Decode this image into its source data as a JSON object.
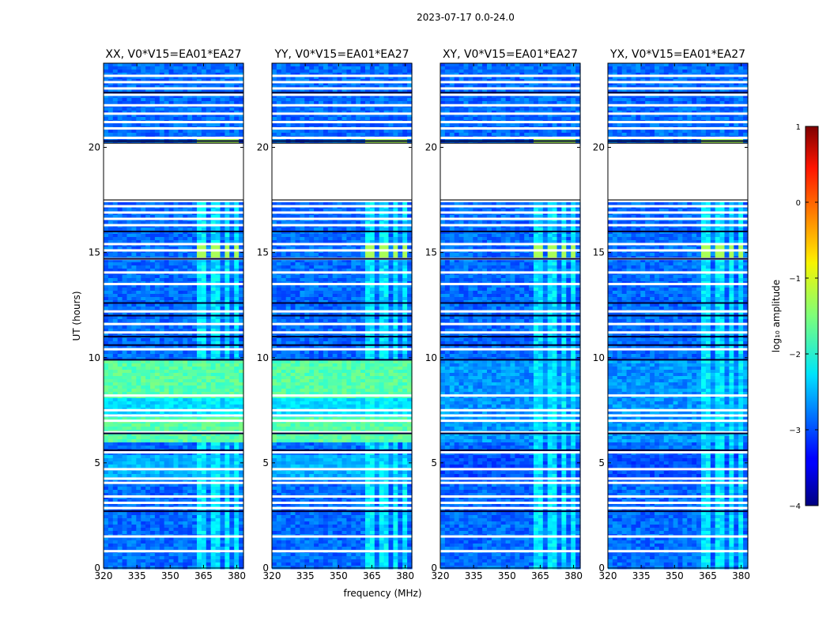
{
  "figure": {
    "suptitle": "2023-07-17 0.0-24.0"
  },
  "chart_data": {
    "type": "heatmap",
    "title": "2023-07-17 0.0-24.0",
    "xlabel": "frequency (MHz)",
    "ylabel": "UT (hours)",
    "xlim": [
      320,
      383
    ],
    "ylim": [
      0,
      24
    ],
    "xticks": [
      "320",
      "335",
      "350",
      "365",
      "380"
    ],
    "yticks": [
      "0",
      "5",
      "10",
      "15",
      "20"
    ],
    "panels": [
      {
        "title": "XX, V0*V15=EA01*EA27",
        "pol": "XX"
      },
      {
        "title": "YY, V0*V15=EA01*EA27",
        "pol": "YY"
      },
      {
        "title": "XY, V0*V15=EA01*EA27",
        "pol": "XY"
      },
      {
        "title": "YX, V0*V15=EA01*EA27",
        "pol": "YX"
      }
    ],
    "colorbar": {
      "label": "log₁₀ amplitude",
      "min": -4,
      "max": 1,
      "ticks": [
        "1",
        "0",
        "−1",
        "−2",
        "−3",
        "−4"
      ],
      "colormap": "jet"
    },
    "data_gap_hours": [
      17.5,
      20.2
    ],
    "rfi_band_mhz": [
      363,
      380
    ]
  }
}
